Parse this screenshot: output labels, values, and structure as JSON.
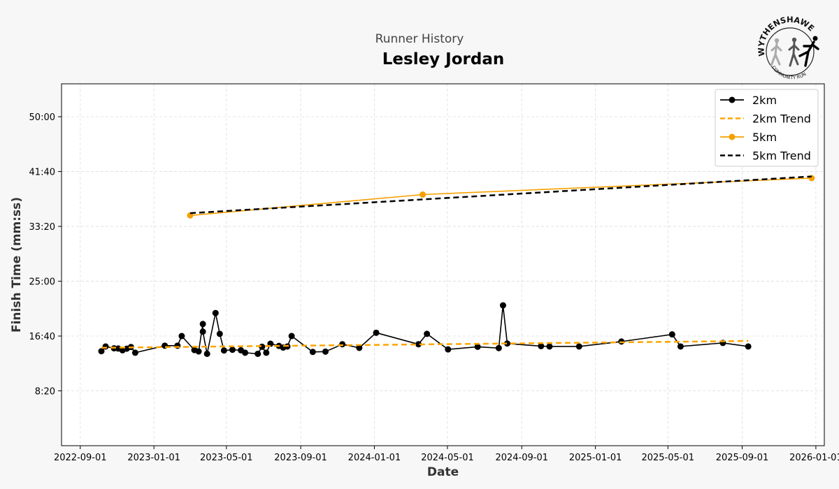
{
  "header": {
    "subtitle": "Runner History",
    "title": "Lesley Jordan"
  },
  "logo": {
    "top_text": "WYTHENSHAWE",
    "bottom_text": "COMMUNITY RUN",
    "icon": "runners-logo"
  },
  "chart_data": {
    "type": "line",
    "xlabel": "Date",
    "ylabel": "Finish Time (mm:ss)",
    "xlim": [
      "2022-08-01",
      "2026-01-15"
    ],
    "ylim": [
      0,
      3300
    ],
    "x_ticks": [
      "2022-09-01",
      "2023-01-01",
      "2023-05-01",
      "2023-09-01",
      "2024-01-01",
      "2024-05-01",
      "2024-09-01",
      "2025-01-01",
      "2025-05-01",
      "2025-09-01",
      "2026-01-01"
    ],
    "y_ticks": [
      {
        "value": 500,
        "label": "8:20"
      },
      {
        "value": 1000,
        "label": "16:40"
      },
      {
        "value": 1500,
        "label": "25:00"
      },
      {
        "value": 2000,
        "label": "33:20"
      },
      {
        "value": 2500,
        "label": "41:40"
      },
      {
        "value": 3000,
        "label": "50:00"
      }
    ],
    "grid": true,
    "legend_position": "top-right",
    "series": [
      {
        "name": "2km",
        "color": "#000000",
        "style": "line-marker",
        "points": [
          [
            "2022-10-06",
            862
          ],
          [
            "2022-10-13",
            905
          ],
          [
            "2022-10-27",
            888
          ],
          [
            "2022-11-03",
            886
          ],
          [
            "2022-11-10",
            870
          ],
          [
            "2022-11-17",
            885
          ],
          [
            "2022-11-24",
            900
          ],
          [
            "2022-12-01",
            848
          ],
          [
            "2023-01-19",
            912
          ],
          [
            "2023-02-09",
            912
          ],
          [
            "2023-02-16",
            1000
          ],
          [
            "2023-03-09",
            872
          ],
          [
            "2023-03-16",
            860
          ],
          [
            "2023-03-23",
            1110
          ],
          [
            "2023-03-23",
            1040
          ],
          [
            "2023-03-30",
            838
          ],
          [
            "2023-04-13",
            1210
          ],
          [
            "2023-04-20",
            1020
          ],
          [
            "2023-04-27",
            868
          ],
          [
            "2023-05-11",
            875
          ],
          [
            "2023-05-25",
            870
          ],
          [
            "2023-06-01",
            848
          ],
          [
            "2023-06-22",
            838
          ],
          [
            "2023-06-29",
            902
          ],
          [
            "2023-07-06",
            848
          ],
          [
            "2023-07-13",
            930
          ],
          [
            "2023-07-27",
            910
          ],
          [
            "2023-08-03",
            895
          ],
          [
            "2023-08-10",
            905
          ],
          [
            "2023-08-17",
            1000
          ],
          [
            "2023-09-21",
            855
          ],
          [
            "2023-10-12",
            858
          ],
          [
            "2023-11-09",
            925
          ],
          [
            "2023-12-07",
            892
          ],
          [
            "2024-01-04",
            1030
          ],
          [
            "2024-03-14",
            925
          ],
          [
            "2024-03-28",
            1020
          ],
          [
            "2024-05-02",
            878
          ],
          [
            "2024-06-20",
            902
          ],
          [
            "2024-07-25",
            890
          ],
          [
            "2024-08-01",
            1280
          ],
          [
            "2024-08-08",
            932
          ],
          [
            "2024-10-03",
            908
          ],
          [
            "2024-10-17",
            905
          ],
          [
            "2024-12-05",
            905
          ],
          [
            "2025-02-13",
            950
          ],
          [
            "2025-05-08",
            1015
          ],
          [
            "2025-05-22",
            905
          ],
          [
            "2025-07-31",
            937
          ],
          [
            "2025-09-11",
            905
          ]
        ]
      },
      {
        "name": "2km Trend",
        "color": "#ffa500",
        "style": "dashed",
        "points": [
          [
            "2022-10-06",
            893
          ],
          [
            "2025-09-11",
            955
          ]
        ]
      },
      {
        "name": "5km",
        "color": "#f5a000",
        "style": "line-marker",
        "points": [
          [
            "2023-03-02",
            2100
          ],
          [
            "2024-03-21",
            2290
          ],
          [
            "2025-12-25",
            2440
          ]
        ]
      },
      {
        "name": "5km Trend",
        "color": "#000000",
        "style": "dashed",
        "points": [
          [
            "2023-03-02",
            2121
          ],
          [
            "2025-12-25",
            2455
          ]
        ]
      }
    ]
  }
}
